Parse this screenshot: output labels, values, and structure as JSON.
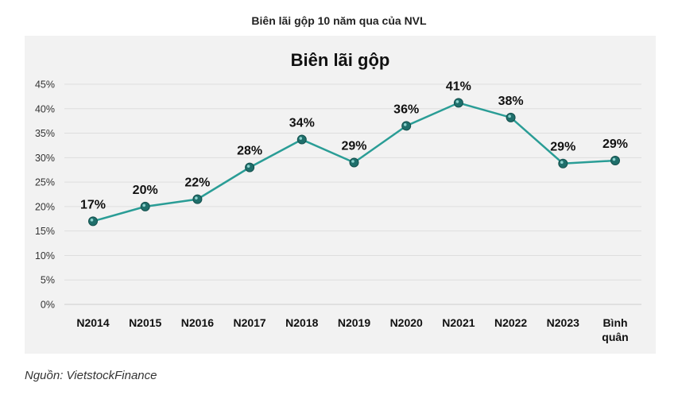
{
  "caption": "Biên lãi gộp 10 năm qua của NVL",
  "source": "Nguồn: VietstockFinance",
  "chart_data": {
    "type": "line",
    "title": "Biên lãi gộp",
    "categories": [
      [
        "N2014"
      ],
      [
        "N2015"
      ],
      [
        "N2016"
      ],
      [
        "N2017"
      ],
      [
        "N2018"
      ],
      [
        "N2019"
      ],
      [
        "N2020"
      ],
      [
        "N2021"
      ],
      [
        "N2022"
      ],
      [
        "N2023"
      ],
      [
        "Bình",
        "quân"
      ]
    ],
    "values": [
      17,
      20,
      21.5,
      28,
      33.7,
      29,
      36.5,
      41.2,
      38.2,
      28.8,
      29.4
    ],
    "data_labels": [
      "17%",
      "20%",
      "22%",
      "28%",
      "34%",
      "29%",
      "36%",
      "41%",
      "38%",
      "29%",
      "29%"
    ],
    "y_ticks": [
      "0%",
      "5%",
      "10%",
      "15%",
      "20%",
      "25%",
      "30%",
      "35%",
      "40%",
      "45%"
    ],
    "ylim": [
      0,
      45
    ],
    "grid": true,
    "legend": "none",
    "line_color": "#2a9d96",
    "marker_color": "#1f6f6b"
  }
}
